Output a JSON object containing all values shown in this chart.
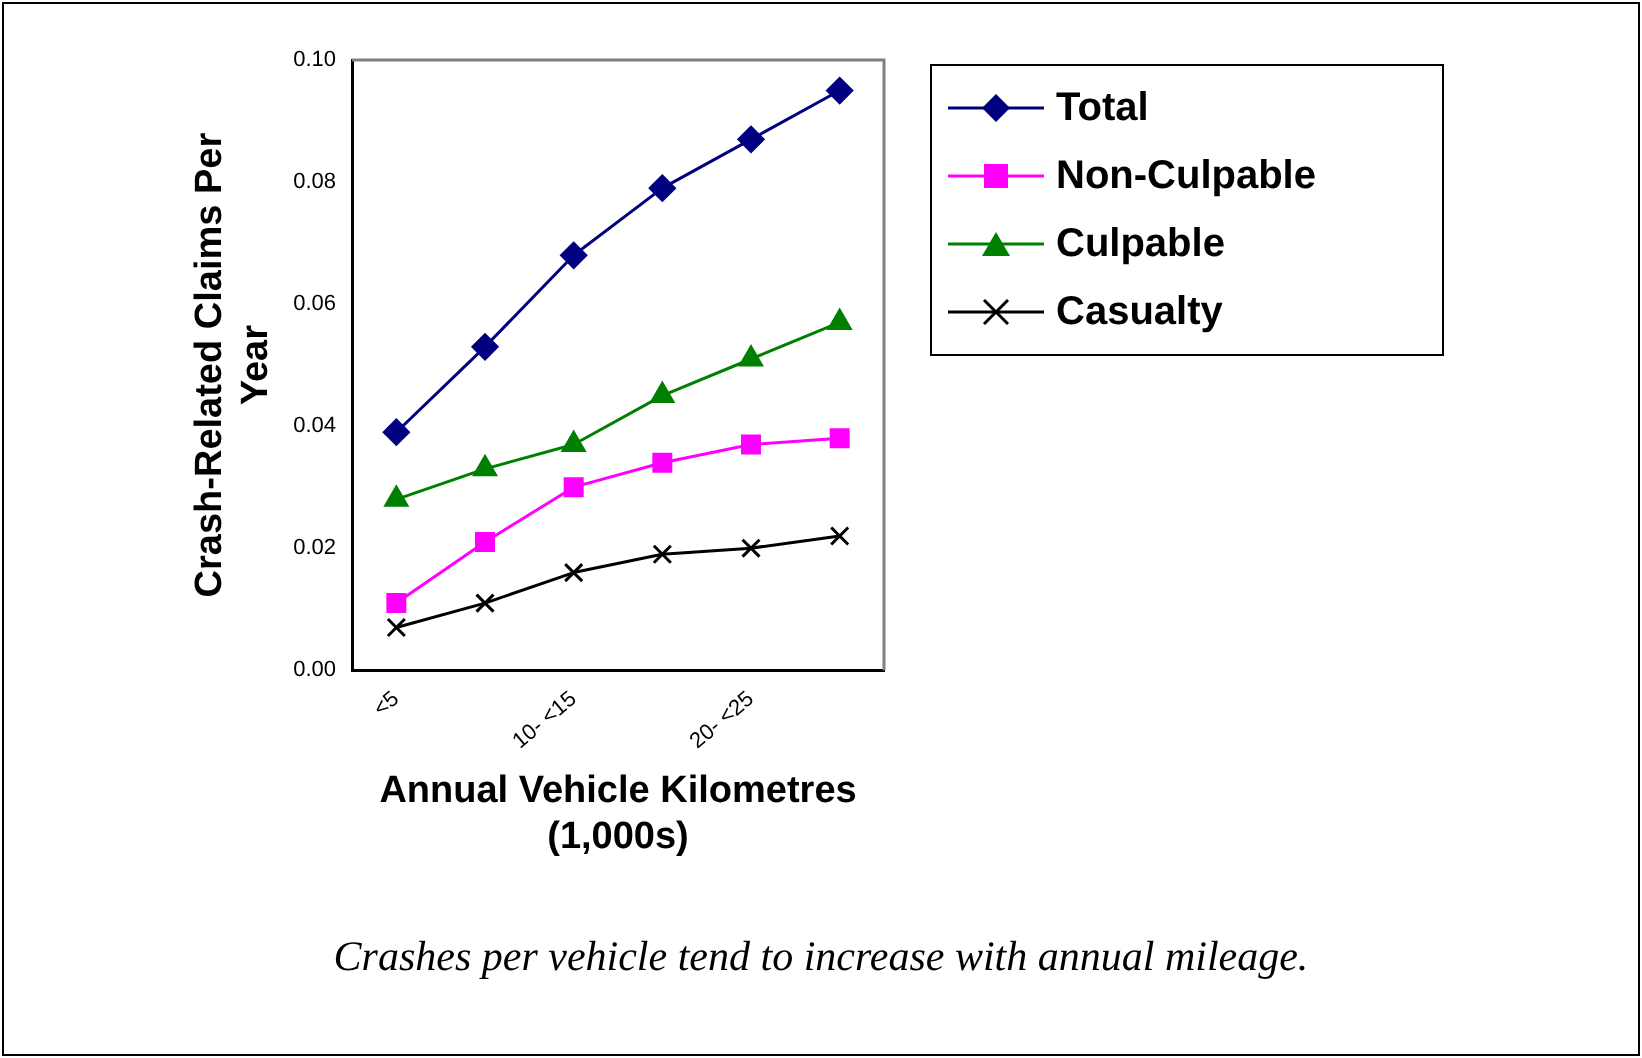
{
  "chart_data": {
    "type": "line",
    "xlabel": "Annual Vehicle Kilometres (1,000s)",
    "ylabel": "Crash-Related Claims Per Year",
    "categories": [
      "<5",
      null,
      "10- <15",
      null,
      "20- <25",
      null
    ],
    "ylim": [
      0,
      0.1
    ],
    "yticks": [
      {
        "value": 0,
        "label": "0.00"
      },
      {
        "value": 0.02,
        "label": "0.02"
      },
      {
        "value": 0.04,
        "label": "0.04"
      },
      {
        "value": 0.06,
        "label": "0.06"
      },
      {
        "value": 0.08,
        "label": "0.08"
      },
      {
        "value": 0.1,
        "label": "0.10"
      }
    ],
    "grid": false,
    "legend": "right",
    "line_style": "solid",
    "series": [
      {
        "name": "Total",
        "color": "#000080",
        "marker": "diamond",
        "values": [
          0.039,
          0.053,
          0.068,
          0.079,
          0.087,
          0.095
        ]
      },
      {
        "name": "Non-Culpable",
        "color": "#ff00ff",
        "marker": "square",
        "values": [
          0.011,
          0.021,
          0.03,
          0.034,
          0.037,
          0.038
        ]
      },
      {
        "name": "Culpable",
        "color": "#008000",
        "marker": "triangle",
        "values": [
          0.028,
          0.033,
          0.037,
          0.045,
          0.051,
          0.057
        ]
      },
      {
        "name": "Casualty",
        "color": "#000000",
        "marker": "cross",
        "values": [
          0.007,
          0.011,
          0.016,
          0.019,
          0.02,
          0.022
        ]
      }
    ],
    "annotations": [
      "Crashes per vehicle tend to increase with annual mileage."
    ]
  }
}
